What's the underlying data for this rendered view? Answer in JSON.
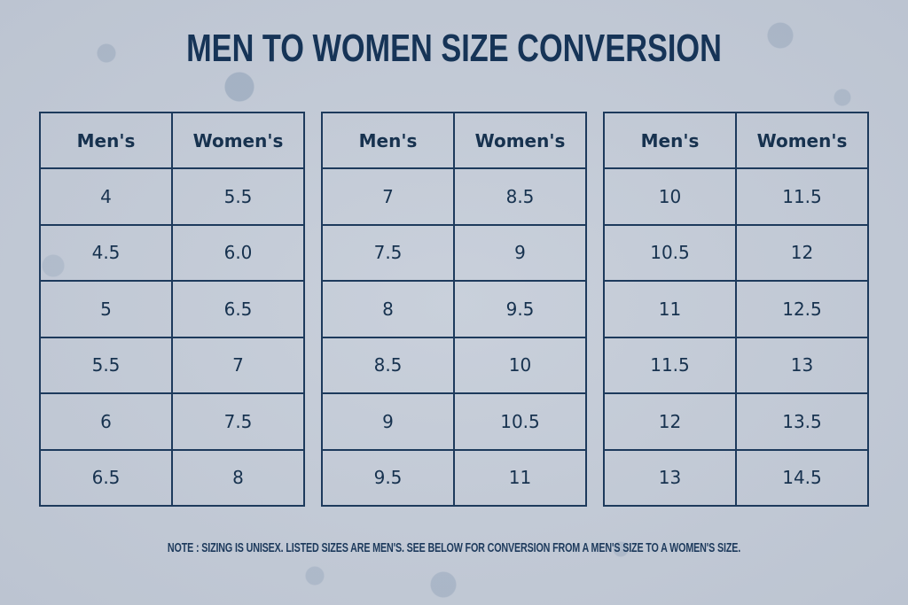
{
  "title": "MEN TO WOMEN SIZE CONVERSION",
  "headers": {
    "men": "Men's",
    "women": "Women's"
  },
  "tables": [
    {
      "rows": [
        [
          "4",
          "5.5"
        ],
        [
          "4.5",
          "6.0"
        ],
        [
          "5",
          "6.5"
        ],
        [
          "5.5",
          "7"
        ],
        [
          "6",
          "7.5"
        ],
        [
          "6.5",
          "8"
        ]
      ]
    },
    {
      "rows": [
        [
          "7",
          "8.5"
        ],
        [
          "7.5",
          "9"
        ],
        [
          "8",
          "9.5"
        ],
        [
          "8.5",
          "10"
        ],
        [
          "9",
          "10.5"
        ],
        [
          "9.5",
          "11"
        ]
      ]
    },
    {
      "rows": [
        [
          "10",
          "11.5"
        ],
        [
          "10.5",
          "12"
        ],
        [
          "11",
          "12.5"
        ],
        [
          "11.5",
          "13"
        ],
        [
          "12",
          "13.5"
        ],
        [
          "13",
          "14.5"
        ]
      ]
    }
  ],
  "note": "NOTE : SIZING IS UNISEX. LISTED SIZES ARE MEN'S. SEE BELOW FOR CONVERSION FROM A MEN'S SIZE TO A WOMEN'S SIZE.",
  "colors": {
    "ink": "#1d3a5c",
    "background": "#c2c9d5"
  }
}
